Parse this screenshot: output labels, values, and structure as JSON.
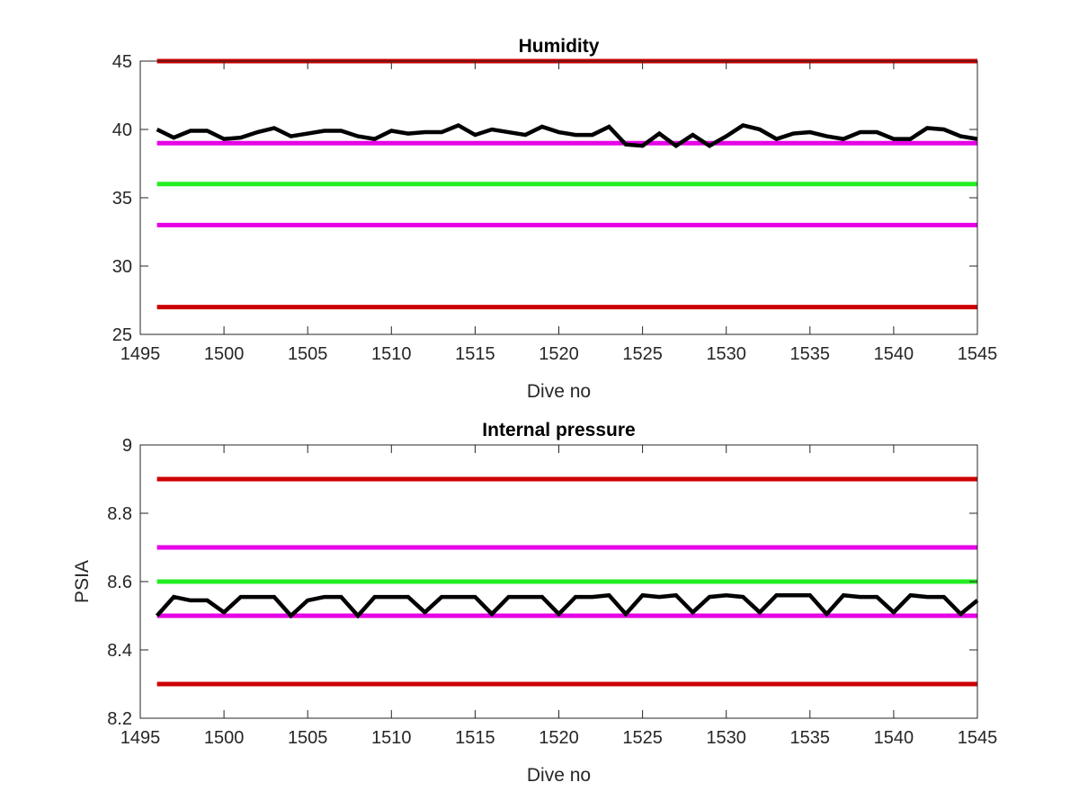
{
  "chart_data": [
    {
      "type": "line",
      "title": "Humidity",
      "xlabel": "Dive no",
      "ylabel": "",
      "xlim": [
        1495,
        1545
      ],
      "ylim": [
        25,
        45
      ],
      "xticks": [
        "1495",
        "1500",
        "1505",
        "1510",
        "1515",
        "1520",
        "1525",
        "1530",
        "1535",
        "1540",
        "1545"
      ],
      "yticks": [
        "25",
        "30",
        "35",
        "40",
        "45"
      ],
      "grid": false,
      "reference_lines": [
        {
          "y": 45,
          "color": "#cc0000"
        },
        {
          "y": 39,
          "color": "#e600e6"
        },
        {
          "y": 36,
          "color": "#22ee22"
        },
        {
          "y": 33,
          "color": "#e600e6"
        },
        {
          "y": 27,
          "color": "#cc0000"
        }
      ],
      "series": [
        {
          "color": "#000000",
          "x": [
            1496,
            1497,
            1498,
            1499,
            1500,
            1501,
            1502,
            1503,
            1504,
            1505,
            1506,
            1507,
            1508,
            1509,
            1510,
            1511,
            1512,
            1513,
            1514,
            1515,
            1516,
            1517,
            1518,
            1519,
            1520,
            1521,
            1522,
            1523,
            1524,
            1525,
            1526,
            1527,
            1528,
            1529,
            1530,
            1531,
            1532,
            1533,
            1534,
            1535,
            1536,
            1537,
            1538,
            1539,
            1540,
            1541,
            1542,
            1543,
            1544,
            1545
          ],
          "y": [
            40.0,
            39.4,
            39.9,
            39.9,
            39.3,
            39.4,
            39.8,
            40.1,
            39.5,
            39.7,
            39.9,
            39.9,
            39.5,
            39.3,
            39.9,
            39.7,
            39.8,
            39.8,
            40.3,
            39.6,
            40.0,
            39.8,
            39.6,
            40.2,
            39.8,
            39.6,
            39.6,
            40.2,
            38.9,
            38.8,
            39.7,
            38.8,
            39.6,
            38.8,
            39.5,
            40.3,
            40.0,
            39.3,
            39.7,
            39.8,
            39.5,
            39.3,
            39.8,
            39.8,
            39.3,
            39.3,
            40.1,
            40.0,
            39.5,
            39.3
          ]
        }
      ]
    },
    {
      "type": "line",
      "title": "Internal pressure",
      "xlabel": "Dive no",
      "ylabel": "PSIA",
      "xlim": [
        1495,
        1545
      ],
      "ylim": [
        8.2,
        9.0
      ],
      "xticks": [
        "1495",
        "1500",
        "1505",
        "1510",
        "1515",
        "1520",
        "1525",
        "1530",
        "1535",
        "1540",
        "1545"
      ],
      "yticks": [
        "8.2",
        "8.4",
        "8.6",
        "8.8",
        "9"
      ],
      "grid": false,
      "reference_lines": [
        {
          "y": 8.9,
          "color": "#cc0000"
        },
        {
          "y": 8.7,
          "color": "#e600e6"
        },
        {
          "y": 8.6,
          "color": "#22ee22"
        },
        {
          "y": 8.5,
          "color": "#e600e6"
        },
        {
          "y": 8.3,
          "color": "#cc0000"
        }
      ],
      "series": [
        {
          "color": "#000000",
          "x": [
            1496,
            1497,
            1498,
            1499,
            1500,
            1501,
            1502,
            1503,
            1504,
            1505,
            1506,
            1507,
            1508,
            1509,
            1510,
            1511,
            1512,
            1513,
            1514,
            1515,
            1516,
            1517,
            1518,
            1519,
            1520,
            1521,
            1522,
            1523,
            1524,
            1525,
            1526,
            1527,
            1528,
            1529,
            1530,
            1531,
            1532,
            1533,
            1534,
            1535,
            1536,
            1537,
            1538,
            1539,
            1540,
            1541,
            1542,
            1543,
            1544,
            1545
          ],
          "y": [
            8.5,
            8.555,
            8.545,
            8.545,
            8.51,
            8.555,
            8.555,
            8.555,
            8.5,
            8.545,
            8.555,
            8.555,
            8.5,
            8.555,
            8.555,
            8.555,
            8.51,
            8.555,
            8.555,
            8.555,
            8.505,
            8.555,
            8.555,
            8.555,
            8.505,
            8.555,
            8.555,
            8.56,
            8.505,
            8.56,
            8.555,
            8.56,
            8.51,
            8.555,
            8.56,
            8.555,
            8.51,
            8.56,
            8.56,
            8.56,
            8.505,
            8.56,
            8.555,
            8.555,
            8.51,
            8.56,
            8.555,
            8.555,
            8.505,
            8.545
          ]
        }
      ]
    }
  ]
}
